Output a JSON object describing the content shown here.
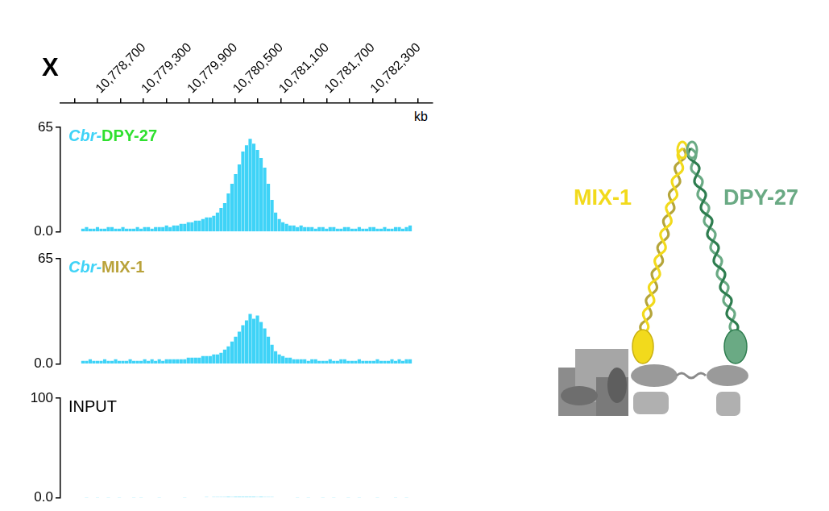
{
  "genome_axis": {
    "chromosome": "X",
    "unit": "kb",
    "xlim": [
      10778225,
      10782775
    ],
    "xticks": [
      {
        "value": 10778700,
        "label": "10,778,700"
      },
      {
        "value": 10779300,
        "label": "10,779,300"
      },
      {
        "value": 10779900,
        "label": "10,779,900"
      },
      {
        "value": 10780500,
        "label": "10,780,500"
      },
      {
        "value": 10781100,
        "label": "10,781,100"
      },
      {
        "value": 10781700,
        "label": "10,781,700"
      },
      {
        "value": 10782300,
        "label": "10,782,300"
      }
    ]
  },
  "chart_data": [
    {
      "type": "bar",
      "title": "Cbr-DPY-27",
      "color": "#3fd3f7",
      "grid": false,
      "tick_labels": "y",
      "ylim": [
        0,
        65
      ],
      "yticks": [
        {
          "value": 0,
          "label": "0.0"
        },
        65
      ],
      "x": [
        10778250,
        10778300,
        10778350,
        10778400,
        10778450,
        10778500,
        10778550,
        10778600,
        10778650,
        10778700,
        10778750,
        10778800,
        10778850,
        10778900,
        10778950,
        10779000,
        10779050,
        10779100,
        10779150,
        10779200,
        10779250,
        10779300,
        10779350,
        10779400,
        10779450,
        10779500,
        10779550,
        10779600,
        10779650,
        10779700,
        10779750,
        10779800,
        10779850,
        10779900,
        10779950,
        10780000,
        10780050,
        10780100,
        10780150,
        10780200,
        10780250,
        10780300,
        10780350,
        10780400,
        10780450,
        10780500,
        10780550,
        10780600,
        10780650,
        10780700,
        10780750,
        10780800,
        10780850,
        10780900,
        10780950,
        10781000,
        10781050,
        10781100,
        10781150,
        10781200,
        10781250,
        10781300,
        10781350,
        10781400,
        10781450,
        10781500,
        10781550,
        10781600,
        10781650,
        10781700,
        10781750,
        10781800,
        10781850,
        10781900,
        10781950,
        10782000,
        10782050,
        10782100,
        10782150,
        10782200,
        10782250,
        10782300,
        10782350,
        10782400,
        10782450,
        10782500,
        10782550,
        10782600,
        10782650,
        10782700,
        10782750
      ],
      "values": [
        2,
        3,
        2,
        2,
        3,
        2,
        2,
        3,
        3,
        2,
        2,
        3,
        2,
        2,
        2,
        3,
        2,
        3,
        3,
        2,
        3,
        3,
        3,
        4,
        3,
        4,
        4,
        5,
        5,
        6,
        6,
        7,
        7,
        8,
        9,
        9,
        10,
        12,
        15,
        18,
        24,
        30,
        36,
        42,
        50,
        54,
        58,
        55,
        51,
        46,
        40,
        30,
        20,
        12,
        8,
        6,
        5,
        4,
        4,
        3,
        4,
        3,
        3,
        3,
        2,
        3,
        3,
        2,
        3,
        3,
        2,
        2,
        3,
        3,
        2,
        2,
        3,
        2,
        2,
        3,
        3,
        2,
        2,
        3,
        2,
        2,
        3,
        3,
        2,
        3,
        4
      ]
    },
    {
      "type": "bar",
      "title": "Cbr-MIX-1",
      "color": "#3fd3f7",
      "grid": false,
      "tick_labels": "y",
      "ylim": [
        0,
        65
      ],
      "yticks": [
        {
          "value": 0,
          "label": "0.0"
        },
        65
      ],
      "x": [
        10778250,
        10778300,
        10778350,
        10778400,
        10778450,
        10778500,
        10778550,
        10778600,
        10778650,
        10778700,
        10778750,
        10778800,
        10778850,
        10778900,
        10778950,
        10779000,
        10779050,
        10779100,
        10779150,
        10779200,
        10779250,
        10779300,
        10779350,
        10779400,
        10779450,
        10779500,
        10779550,
        10779600,
        10779650,
        10779700,
        10779750,
        10779800,
        10779850,
        10779900,
        10779950,
        10780000,
        10780050,
        10780100,
        10780150,
        10780200,
        10780250,
        10780300,
        10780350,
        10780400,
        10780450,
        10780500,
        10780550,
        10780600,
        10780650,
        10780700,
        10780750,
        10780800,
        10780850,
        10780900,
        10780950,
        10781000,
        10781050,
        10781100,
        10781150,
        10781200,
        10781250,
        10781300,
        10781350,
        10781400,
        10781450,
        10781500,
        10781550,
        10781600,
        10781650,
        10781700,
        10781750,
        10781800,
        10781850,
        10781900,
        10781950,
        10782000,
        10782050,
        10782100,
        10782150,
        10782200,
        10782250,
        10782300,
        10782350,
        10782400,
        10782450,
        10782500,
        10782550,
        10782600,
        10782650,
        10782700,
        10782750
      ],
      "values": [
        2,
        2,
        3,
        2,
        2,
        2,
        3,
        2,
        2,
        3,
        2,
        2,
        2,
        3,
        2,
        2,
        2,
        3,
        2,
        3,
        2,
        3,
        2,
        3,
        3,
        3,
        3,
        3,
        3,
        4,
        4,
        4,
        4,
        5,
        5,
        5,
        6,
        6,
        7,
        9,
        11,
        14,
        17,
        20,
        24,
        27,
        31,
        28,
        30,
        26,
        22,
        17,
        12,
        8,
        6,
        5,
        4,
        4,
        3,
        3,
        3,
        3,
        2,
        3,
        3,
        2,
        2,
        2,
        3,
        2,
        2,
        3,
        3,
        2,
        2,
        2,
        3,
        2,
        2,
        2,
        2,
        3,
        2,
        2,
        2,
        3,
        2,
        3,
        2,
        3,
        3
      ]
    },
    {
      "type": "bar",
      "title": "INPUT",
      "color": "#3fd3f7",
      "grid": false,
      "tick_labels": "y",
      "ylim": [
        0,
        100
      ],
      "yticks": [
        {
          "value": 0,
          "label": "0.0"
        },
        100
      ],
      "x": [
        10778250,
        10778300,
        10778350,
        10778400,
        10778450,
        10778500,
        10778550,
        10778600,
        10778650,
        10778700,
        10778750,
        10778800,
        10778850,
        10778900,
        10778950,
        10779000,
        10779050,
        10779100,
        10779150,
        10779200,
        10779250,
        10779300,
        10779350,
        10779400,
        10779450,
        10779500,
        10779550,
        10779600,
        10779650,
        10779700,
        10779750,
        10779800,
        10779850,
        10779900,
        10779950,
        10780000,
        10780050,
        10780100,
        10780150,
        10780200,
        10780250,
        10780300,
        10780350,
        10780400,
        10780450,
        10780500,
        10780550,
        10780600,
        10780650,
        10780700,
        10780750,
        10780800,
        10780850,
        10780900,
        10780950,
        10781000,
        10781050,
        10781100,
        10781150,
        10781200,
        10781250,
        10781300,
        10781350,
        10781400,
        10781450,
        10781500,
        10781550,
        10781600,
        10781650,
        10781700,
        10781750,
        10781800,
        10781850,
        10781900,
        10781950,
        10782000,
        10782050,
        10782100,
        10782150,
        10782200,
        10782250,
        10782300,
        10782350,
        10782400,
        10782450,
        10782500,
        10782550,
        10782600,
        10782650,
        10782700,
        10782750
      ],
      "values": [
        0.6,
        0.5,
        0.7,
        0.6,
        0.5,
        0.6,
        0.7,
        0.5,
        0.6,
        0.6,
        0.5,
        0.6,
        0.6,
        0.7,
        0.5,
        0.6,
        0.5,
        0.6,
        0.7,
        0.6,
        0.6,
        0.5,
        0.6,
        0.7,
        0.6,
        0.6,
        0.7,
        0.6,
        0.5,
        0.6,
        0.7,
        0.6,
        0.6,
        0.7,
        0.8,
        0.7,
        0.8,
        0.9,
        0.8,
        0.9,
        1.0,
        0.9,
        1.0,
        1.1,
        1.0,
        1.1,
        1.0,
        1.0,
        0.9,
        1.0,
        0.9,
        0.8,
        0.8,
        0.7,
        0.7,
        0.6,
        0.7,
        0.6,
        0.6,
        0.5,
        0.6,
        0.6,
        0.5,
        0.6,
        0.7,
        0.6,
        0.5,
        0.6,
        0.6,
        0.5,
        0.6,
        0.7,
        0.6,
        0.5,
        0.6,
        0.6,
        0.5,
        0.6,
        0.7,
        0.6,
        0.6,
        0.5,
        0.6,
        0.6,
        0.7,
        0.6,
        0.5,
        0.6,
        0.6,
        0.5,
        0.6
      ]
    }
  ],
  "diagram": {
    "labels": [
      {
        "text": "MIX-1",
        "color": "#f2da1c"
      },
      {
        "text": "DPY-27",
        "color": "#6aaa84"
      }
    ]
  }
}
